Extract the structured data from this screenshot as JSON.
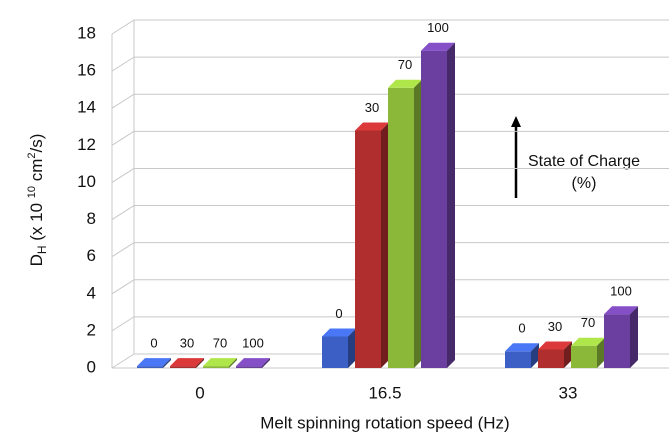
{
  "chart_data": {
    "type": "bar3d",
    "y_label": {
      "main": "D",
      "sub": "H",
      "mid": " (x 10 ",
      "sup": "10",
      "unit": " cm",
      "sup2": "2",
      "end": "/s)"
    },
    "x_label": "Melt spinning  rotation speed (Hz)",
    "annotation": [
      "State of Charge",
      "(%)"
    ],
    "categories": [
      "0",
      "16.5",
      "33"
    ],
    "series": [
      {
        "name": "0",
        "color": "#3b5fc4",
        "values": [
          0.1,
          1.7,
          0.9
        ]
      },
      {
        "name": "30",
        "color": "#b02e2e",
        "values": [
          0.1,
          12.8,
          1.0
        ]
      },
      {
        "name": "70",
        "color": "#8cb83a",
        "values": [
          0.1,
          15.1,
          1.2
        ]
      },
      {
        "name": "100",
        "color": "#6a3fa0",
        "values": [
          0.1,
          17.1,
          2.9
        ]
      }
    ],
    "ylim": [
      0,
      18
    ],
    "yticks": [
      0,
      2,
      4,
      6,
      8,
      10,
      12,
      14,
      16,
      18
    ],
    "grid": true
  }
}
